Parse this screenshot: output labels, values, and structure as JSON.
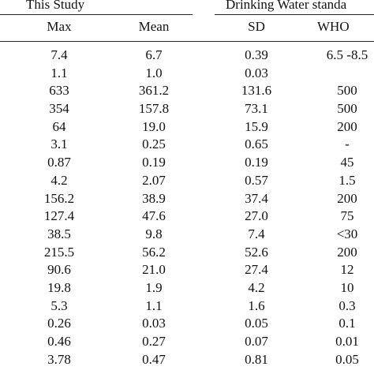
{
  "header": {
    "group_study": "This Study",
    "group_dws": "Drinking Water standa",
    "col_max": "Max",
    "col_mean": "Mean",
    "col_sd": "SD",
    "col_who": "WHO"
  },
  "rows": [
    {
      "max": "7.4",
      "mean": "6.7",
      "sd": "0.39",
      "who": "6.5 -8.5"
    },
    {
      "max": "1.1",
      "mean": "1.0",
      "sd": "0.03",
      "who": ""
    },
    {
      "max": "633",
      "mean": "361.2",
      "sd": "131.6",
      "who": "500"
    },
    {
      "max": "354",
      "mean": "157.8",
      "sd": "73.1",
      "who": "500"
    },
    {
      "max": "64",
      "mean": "19.0",
      "sd": "15.9",
      "who": "200"
    },
    {
      "max": "3.1",
      "mean": "0.25",
      "sd": "0.65",
      "who": "-"
    },
    {
      "max": "0.87",
      "mean": "0.19",
      "sd": "0.19",
      "who": "45"
    },
    {
      "max": "4.2",
      "mean": "2.07",
      "sd": "0.57",
      "who": "1.5"
    },
    {
      "max": "156.2",
      "mean": "38.9",
      "sd": "37.4",
      "who": "200"
    },
    {
      "max": "127.4",
      "mean": "47.6",
      "sd": "27.0",
      "who": "75"
    },
    {
      "max": "38.5",
      "mean": "9.8",
      "sd": "7.4",
      "who": "<30"
    },
    {
      "max": "215.5",
      "mean": "56.2",
      "sd": "52.6",
      "who": "200"
    },
    {
      "max": "90.6",
      "mean": "21.0",
      "sd": "27.4",
      "who": "12"
    },
    {
      "max": "19.8",
      "mean": "1.9",
      "sd": "4.2",
      "who": "10"
    },
    {
      "max": "5.3",
      "mean": "1.1",
      "sd": "1.6",
      "who": "0.3"
    },
    {
      "max": "0.26",
      "mean": "0.03",
      "sd": "0.05",
      "who": "0.1"
    },
    {
      "max": "0.46",
      "mean": "0.27",
      "sd": "0.07",
      "who": "0.01"
    },
    {
      "max": "3.78",
      "mean": "0.47",
      "sd": "0.81",
      "who": "0.05"
    }
  ]
}
